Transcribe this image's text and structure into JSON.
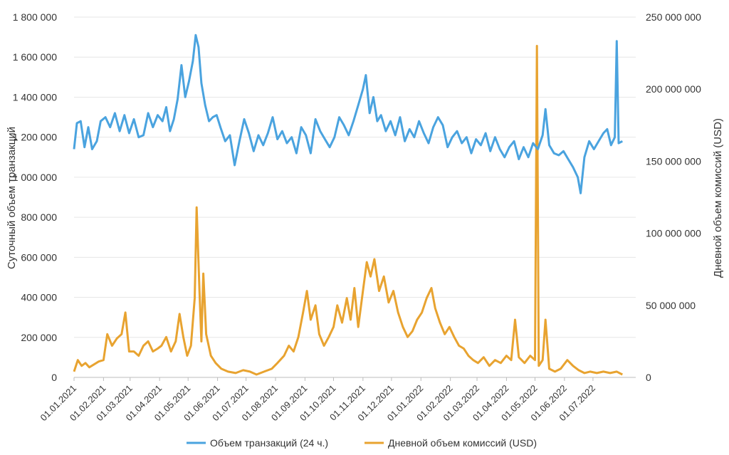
{
  "chart_data": {
    "type": "line",
    "title": "",
    "x_start": "2021-01-01",
    "x_end": "2022-08-15",
    "xlabel": "",
    "ylabel_left": "Суточный объем транзакций",
    "ylabel_right": "Дневной объем комиссий (USD)",
    "ylim_left": [
      0,
      1800000
    ],
    "ylim_right": [
      0,
      250000000
    ],
    "left_ticks": [
      0,
      200000,
      400000,
      600000,
      800000,
      1000000,
      1200000,
      1400000,
      1600000,
      1800000
    ],
    "left_tick_labels": [
      "0",
      "200 000",
      "400 000",
      "600 000",
      "800 000",
      "1 000 000",
      "1 200 000",
      "1 400 000",
      "1 600 000",
      "1 800 000"
    ],
    "right_ticks": [
      0,
      50000000,
      100000000,
      150000000,
      200000000,
      250000000
    ],
    "right_tick_labels": [
      "0",
      "50 000 000",
      "100 000 000",
      "150 000 000",
      "200 000 000",
      "250 000 000"
    ],
    "x_ticks": [
      "2021-01-01",
      "2021-02-01",
      "2021-03-01",
      "2021-04-01",
      "2021-05-01",
      "2021-06-01",
      "2021-07-01",
      "2021-08-01",
      "2021-09-01",
      "2021-10-01",
      "2021-11-01",
      "2021-12-01",
      "2022-01-01",
      "2022-02-01",
      "2022-03-01",
      "2022-04-01",
      "2022-05-01",
      "2022-06-01",
      "2022-07-01"
    ],
    "x_tick_labels": [
      "01.01.2021",
      "01.02.2021",
      "01.03.2021",
      "01.04.2021",
      "01.05.2021",
      "01.06.2021",
      "01.07.2021",
      "01.08.2021",
      "01.09.2021",
      "01.10.2021",
      "01.11.2021",
      "01.12.2021",
      "01.01.2022",
      "01.02.2022",
      "01.03.2022",
      "01.04.2022",
      "01.05.2022",
      "01.06.2022",
      "01.07.2022"
    ],
    "legend_position": "bottom",
    "series": [
      {
        "name": "Объем транзакций (24 ч.)",
        "axis": "left",
        "color": "#4aa3df",
        "points": [
          [
            "2021-01-01",
            1140000
          ],
          [
            "2021-01-04",
            1270000
          ],
          [
            "2021-01-08",
            1280000
          ],
          [
            "2021-01-12",
            1150000
          ],
          [
            "2021-01-16",
            1250000
          ],
          [
            "2021-01-20",
            1140000
          ],
          [
            "2021-01-25",
            1180000
          ],
          [
            "2021-01-29",
            1280000
          ],
          [
            "2021-02-03",
            1300000
          ],
          [
            "2021-02-08",
            1250000
          ],
          [
            "2021-02-13",
            1320000
          ],
          [
            "2021-02-18",
            1230000
          ],
          [
            "2021-02-23",
            1310000
          ],
          [
            "2021-02-28",
            1220000
          ],
          [
            "2021-03-05",
            1290000
          ],
          [
            "2021-03-10",
            1200000
          ],
          [
            "2021-03-15",
            1210000
          ],
          [
            "2021-03-20",
            1320000
          ],
          [
            "2021-03-25",
            1250000
          ],
          [
            "2021-03-30",
            1310000
          ],
          [
            "2021-04-04",
            1280000
          ],
          [
            "2021-04-08",
            1350000
          ],
          [
            "2021-04-12",
            1230000
          ],
          [
            "2021-04-16",
            1290000
          ],
          [
            "2021-04-20",
            1390000
          ],
          [
            "2021-04-24",
            1560000
          ],
          [
            "2021-04-28",
            1400000
          ],
          [
            "2021-05-02",
            1480000
          ],
          [
            "2021-05-06",
            1580000
          ],
          [
            "2021-05-09",
            1710000
          ],
          [
            "2021-05-12",
            1650000
          ],
          [
            "2021-05-15",
            1470000
          ],
          [
            "2021-05-19",
            1360000
          ],
          [
            "2021-05-23",
            1280000
          ],
          [
            "2021-05-27",
            1300000
          ],
          [
            "2021-05-31",
            1310000
          ],
          [
            "2021-06-04",
            1250000
          ],
          [
            "2021-06-09",
            1180000
          ],
          [
            "2021-06-14",
            1210000
          ],
          [
            "2021-06-19",
            1060000
          ],
          [
            "2021-06-24",
            1180000
          ],
          [
            "2021-06-29",
            1290000
          ],
          [
            "2021-07-04",
            1220000
          ],
          [
            "2021-07-09",
            1130000
          ],
          [
            "2021-07-14",
            1210000
          ],
          [
            "2021-07-19",
            1160000
          ],
          [
            "2021-07-24",
            1220000
          ],
          [
            "2021-07-29",
            1300000
          ],
          [
            "2021-08-03",
            1190000
          ],
          [
            "2021-08-08",
            1230000
          ],
          [
            "2021-08-13",
            1170000
          ],
          [
            "2021-08-18",
            1200000
          ],
          [
            "2021-08-23",
            1120000
          ],
          [
            "2021-08-28",
            1250000
          ],
          [
            "2021-09-02",
            1210000
          ],
          [
            "2021-09-07",
            1120000
          ],
          [
            "2021-09-12",
            1290000
          ],
          [
            "2021-09-17",
            1230000
          ],
          [
            "2021-09-22",
            1190000
          ],
          [
            "2021-09-27",
            1150000
          ],
          [
            "2021-10-02",
            1200000
          ],
          [
            "2021-10-07",
            1300000
          ],
          [
            "2021-10-12",
            1260000
          ],
          [
            "2021-10-17",
            1210000
          ],
          [
            "2021-10-22",
            1280000
          ],
          [
            "2021-10-27",
            1360000
          ],
          [
            "2021-11-01",
            1440000
          ],
          [
            "2021-11-04",
            1510000
          ],
          [
            "2021-11-08",
            1320000
          ],
          [
            "2021-11-12",
            1400000
          ],
          [
            "2021-11-16",
            1280000
          ],
          [
            "2021-11-20",
            1310000
          ],
          [
            "2021-11-25",
            1230000
          ],
          [
            "2021-11-30",
            1280000
          ],
          [
            "2021-12-05",
            1210000
          ],
          [
            "2021-12-10",
            1300000
          ],
          [
            "2021-12-15",
            1180000
          ],
          [
            "2021-12-20",
            1240000
          ],
          [
            "2021-12-25",
            1200000
          ],
          [
            "2021-12-30",
            1280000
          ],
          [
            "2022-01-04",
            1220000
          ],
          [
            "2022-01-09",
            1170000
          ],
          [
            "2022-01-14",
            1250000
          ],
          [
            "2022-01-19",
            1300000
          ],
          [
            "2022-01-24",
            1260000
          ],
          [
            "2022-01-29",
            1150000
          ],
          [
            "2022-02-03",
            1200000
          ],
          [
            "2022-02-08",
            1230000
          ],
          [
            "2022-02-13",
            1170000
          ],
          [
            "2022-02-18",
            1200000
          ],
          [
            "2022-02-23",
            1120000
          ],
          [
            "2022-02-28",
            1190000
          ],
          [
            "2022-03-05",
            1160000
          ],
          [
            "2022-03-10",
            1220000
          ],
          [
            "2022-03-15",
            1130000
          ],
          [
            "2022-03-20",
            1200000
          ],
          [
            "2022-03-25",
            1140000
          ],
          [
            "2022-03-30",
            1100000
          ],
          [
            "2022-04-04",
            1150000
          ],
          [
            "2022-04-09",
            1180000
          ],
          [
            "2022-04-14",
            1090000
          ],
          [
            "2022-04-19",
            1150000
          ],
          [
            "2022-04-24",
            1100000
          ],
          [
            "2022-04-29",
            1170000
          ],
          [
            "2022-05-04",
            1140000
          ],
          [
            "2022-05-09",
            1210000
          ],
          [
            "2022-05-12",
            1340000
          ],
          [
            "2022-05-16",
            1160000
          ],
          [
            "2022-05-21",
            1120000
          ],
          [
            "2022-05-26",
            1110000
          ],
          [
            "2022-05-31",
            1130000
          ],
          [
            "2022-06-05",
            1090000
          ],
          [
            "2022-06-10",
            1050000
          ],
          [
            "2022-06-15",
            1000000
          ],
          [
            "2022-06-18",
            920000
          ],
          [
            "2022-06-22",
            1100000
          ],
          [
            "2022-06-27",
            1180000
          ],
          [
            "2022-07-02",
            1140000
          ],
          [
            "2022-07-07",
            1180000
          ],
          [
            "2022-07-12",
            1220000
          ],
          [
            "2022-07-16",
            1240000
          ],
          [
            "2022-07-20",
            1160000
          ],
          [
            "2022-07-24",
            1200000
          ],
          [
            "2022-07-26",
            1680000
          ],
          [
            "2022-07-28",
            1170000
          ],
          [
            "2022-08-01",
            1180000
          ]
        ]
      },
      {
        "name": "Дневной объем комиссий (USD)",
        "axis": "right",
        "color": "#e8a330",
        "points": [
          [
            "2021-01-01",
            4000000
          ],
          [
            "2021-01-05",
            12000000
          ],
          [
            "2021-01-09",
            8000000
          ],
          [
            "2021-01-13",
            10000000
          ],
          [
            "2021-01-17",
            7000000
          ],
          [
            "2021-01-22",
            9000000
          ],
          [
            "2021-01-27",
            11000000
          ],
          [
            "2021-02-01",
            12000000
          ],
          [
            "2021-02-05",
            30000000
          ],
          [
            "2021-02-10",
            22000000
          ],
          [
            "2021-02-15",
            27000000
          ],
          [
            "2021-02-20",
            30000000
          ],
          [
            "2021-02-24",
            45000000
          ],
          [
            "2021-02-28",
            18000000
          ],
          [
            "2021-03-05",
            18000000
          ],
          [
            "2021-03-10",
            15000000
          ],
          [
            "2021-03-15",
            22000000
          ],
          [
            "2021-03-20",
            25000000
          ],
          [
            "2021-03-25",
            18000000
          ],
          [
            "2021-03-30",
            20000000
          ],
          [
            "2021-04-03",
            22000000
          ],
          [
            "2021-04-08",
            28000000
          ],
          [
            "2021-04-13",
            18000000
          ],
          [
            "2021-04-18",
            25000000
          ],
          [
            "2021-04-22",
            44000000
          ],
          [
            "2021-04-26",
            28000000
          ],
          [
            "2021-04-30",
            15000000
          ],
          [
            "2021-05-04",
            22000000
          ],
          [
            "2021-05-08",
            55000000
          ],
          [
            "2021-05-10",
            118000000
          ],
          [
            "2021-05-13",
            60000000
          ],
          [
            "2021-05-15",
            25000000
          ],
          [
            "2021-05-17",
            72000000
          ],
          [
            "2021-05-20",
            30000000
          ],
          [
            "2021-05-25",
            15000000
          ],
          [
            "2021-05-30",
            10000000
          ],
          [
            "2021-06-05",
            6000000
          ],
          [
            "2021-06-12",
            4000000
          ],
          [
            "2021-06-20",
            3000000
          ],
          [
            "2021-06-28",
            5000000
          ],
          [
            "2021-07-05",
            4000000
          ],
          [
            "2021-07-12",
            2000000
          ],
          [
            "2021-07-20",
            4000000
          ],
          [
            "2021-07-28",
            6000000
          ],
          [
            "2021-08-03",
            10000000
          ],
          [
            "2021-08-10",
            15000000
          ],
          [
            "2021-08-15",
            22000000
          ],
          [
            "2021-08-20",
            18000000
          ],
          [
            "2021-08-25",
            28000000
          ],
          [
            "2021-08-30",
            45000000
          ],
          [
            "2021-09-03",
            60000000
          ],
          [
            "2021-09-07",
            40000000
          ],
          [
            "2021-09-12",
            50000000
          ],
          [
            "2021-09-16",
            30000000
          ],
          [
            "2021-09-21",
            22000000
          ],
          [
            "2021-09-26",
            28000000
          ],
          [
            "2021-10-01",
            35000000
          ],
          [
            "2021-10-05",
            50000000
          ],
          [
            "2021-10-10",
            38000000
          ],
          [
            "2021-10-15",
            55000000
          ],
          [
            "2021-10-19",
            40000000
          ],
          [
            "2021-10-23",
            62000000
          ],
          [
            "2021-10-27",
            35000000
          ],
          [
            "2021-11-01",
            60000000
          ],
          [
            "2021-11-05",
            80000000
          ],
          [
            "2021-11-09",
            70000000
          ],
          [
            "2021-11-13",
            82000000
          ],
          [
            "2021-11-18",
            60000000
          ],
          [
            "2021-11-23",
            70000000
          ],
          [
            "2021-11-28",
            52000000
          ],
          [
            "2021-12-03",
            60000000
          ],
          [
            "2021-12-08",
            45000000
          ],
          [
            "2021-12-13",
            35000000
          ],
          [
            "2021-12-18",
            28000000
          ],
          [
            "2021-12-23",
            32000000
          ],
          [
            "2021-12-28",
            40000000
          ],
          [
            "2022-01-02",
            45000000
          ],
          [
            "2022-01-07",
            55000000
          ],
          [
            "2022-01-12",
            62000000
          ],
          [
            "2022-01-16",
            48000000
          ],
          [
            "2022-01-21",
            38000000
          ],
          [
            "2022-01-26",
            30000000
          ],
          [
            "2022-01-31",
            35000000
          ],
          [
            "2022-02-05",
            28000000
          ],
          [
            "2022-02-10",
            22000000
          ],
          [
            "2022-02-15",
            20000000
          ],
          [
            "2022-02-20",
            15000000
          ],
          [
            "2022-02-25",
            12000000
          ],
          [
            "2022-03-02",
            10000000
          ],
          [
            "2022-03-08",
            14000000
          ],
          [
            "2022-03-14",
            8000000
          ],
          [
            "2022-03-20",
            12000000
          ],
          [
            "2022-03-26",
            10000000
          ],
          [
            "2022-04-01",
            15000000
          ],
          [
            "2022-04-06",
            12000000
          ],
          [
            "2022-04-10",
            40000000
          ],
          [
            "2022-04-14",
            14000000
          ],
          [
            "2022-04-20",
            10000000
          ],
          [
            "2022-04-26",
            15000000
          ],
          [
            "2022-05-01",
            12000000
          ],
          [
            "2022-05-03",
            230000000
          ],
          [
            "2022-05-05",
            8000000
          ],
          [
            "2022-05-09",
            12000000
          ],
          [
            "2022-05-12",
            40000000
          ],
          [
            "2022-05-16",
            6000000
          ],
          [
            "2022-05-22",
            4000000
          ],
          [
            "2022-05-28",
            6000000
          ],
          [
            "2022-06-04",
            12000000
          ],
          [
            "2022-06-10",
            8000000
          ],
          [
            "2022-06-16",
            5000000
          ],
          [
            "2022-06-22",
            3000000
          ],
          [
            "2022-06-28",
            4000000
          ],
          [
            "2022-07-05",
            3000000
          ],
          [
            "2022-07-12",
            4000000
          ],
          [
            "2022-07-19",
            3000000
          ],
          [
            "2022-07-26",
            4000000
          ],
          [
            "2022-08-01",
            2000000
          ]
        ]
      }
    ]
  }
}
